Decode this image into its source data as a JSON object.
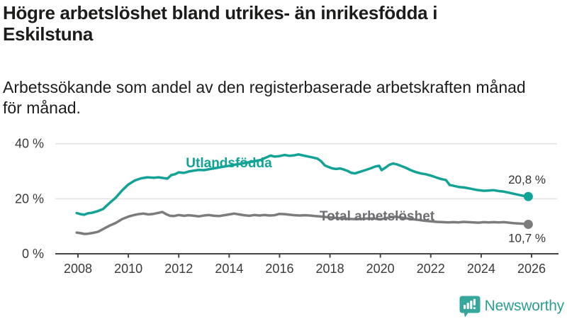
{
  "title": {
    "lines": [
      "Högre arbetslöshet bland utrikes- än inrikesfödda i",
      "Eskilstuna"
    ]
  },
  "subtitle": {
    "lines": [
      "Arbetssökande som andel av den registerbaserade arbetskraften månad",
      "för månad."
    ]
  },
  "chart_data": {
    "type": "line",
    "title": "Högre arbetslöshet bland utrikes- än inrikesfödda i Eskilstuna",
    "subtitle": "Arbetssökande som andel av den registerbaserade arbetskraften månad för månad.",
    "unit": "%",
    "grid": "horizontal-only",
    "legend_position": "inline-labels",
    "style": {
      "axis_color": "#454545",
      "grid_color": "#e1e1e1",
      "tick_text_color": "#3a3a3a",
      "value_text_color": "#333333"
    },
    "x_axis": {
      "range_years": [
        2007.1,
        2027.0
      ],
      "ticks": [
        {
          "value": 2008,
          "label": "2008"
        },
        {
          "value": 2010,
          "label": "2010"
        },
        {
          "value": 2012,
          "label": "2012"
        },
        {
          "value": 2014,
          "label": "2014"
        },
        {
          "value": 2016,
          "label": "2016"
        },
        {
          "value": 2018,
          "label": "2018"
        },
        {
          "value": 2020,
          "label": "2020"
        },
        {
          "value": 2022,
          "label": "2022"
        },
        {
          "value": 2024,
          "label": "2024"
        },
        {
          "value": 2026,
          "label": "2026"
        }
      ]
    },
    "y_axis": {
      "range": [
        0,
        41.5
      ],
      "ticks": [
        {
          "value": 0,
          "label": "0 %"
        },
        {
          "value": 20,
          "label": "20 %"
        },
        {
          "value": 40,
          "label": "40 %"
        }
      ],
      "gridline_values": [
        20,
        40
      ]
    },
    "series": [
      {
        "id": "utlandsfodda",
        "name": "Utlandsfödda",
        "color": "#12A296",
        "label_color": "#12A296",
        "end_label": "20,8 %",
        "end_value": 20.8,
        "points": [
          [
            2007.95,
            14.8
          ],
          [
            2008.1,
            14.4
          ],
          [
            2008.25,
            14.2
          ],
          [
            2008.4,
            14.7
          ],
          [
            2008.55,
            14.9
          ],
          [
            2008.75,
            15.4
          ],
          [
            2009.0,
            16.3
          ],
          [
            2009.25,
            18.4
          ],
          [
            2009.5,
            20.4
          ],
          [
            2009.75,
            23.0
          ],
          [
            2010.0,
            25.2
          ],
          [
            2010.25,
            26.6
          ],
          [
            2010.5,
            27.4
          ],
          [
            2010.75,
            27.8
          ],
          [
            2011.0,
            27.6
          ],
          [
            2011.2,
            27.8
          ],
          [
            2011.4,
            27.5
          ],
          [
            2011.55,
            27.3
          ],
          [
            2011.7,
            28.6
          ],
          [
            2011.85,
            28.9
          ],
          [
            2012.0,
            29.6
          ],
          [
            2012.2,
            29.4
          ],
          [
            2012.4,
            29.9
          ],
          [
            2012.6,
            30.2
          ],
          [
            2012.8,
            30.5
          ],
          [
            2013.0,
            30.4
          ],
          [
            2013.25,
            30.8
          ],
          [
            2013.5,
            31.2
          ],
          [
            2013.75,
            31.6
          ],
          [
            2014.0,
            32.0
          ],
          [
            2014.25,
            32.4
          ],
          [
            2014.5,
            32.8
          ],
          [
            2014.75,
            33.2
          ],
          [
            2015.0,
            33.6
          ],
          [
            2015.25,
            34.1
          ],
          [
            2015.5,
            35.1
          ],
          [
            2015.65,
            35.7
          ],
          [
            2015.8,
            35.3
          ],
          [
            2016.0,
            35.5
          ],
          [
            2016.2,
            35.9
          ],
          [
            2016.4,
            35.6
          ],
          [
            2016.6,
            35.8
          ],
          [
            2016.75,
            36.1
          ],
          [
            2016.9,
            35.8
          ],
          [
            2017.1,
            35.4
          ],
          [
            2017.3,
            35.0
          ],
          [
            2017.5,
            34.6
          ],
          [
            2017.65,
            33.6
          ],
          [
            2017.8,
            32.1
          ],
          [
            2017.95,
            31.5
          ],
          [
            2018.1,
            31.0
          ],
          [
            2018.25,
            30.8
          ],
          [
            2018.4,
            31.0
          ],
          [
            2018.55,
            30.6
          ],
          [
            2018.7,
            30.1
          ],
          [
            2018.85,
            29.4
          ],
          [
            2019.0,
            29.2
          ],
          [
            2019.2,
            29.8
          ],
          [
            2019.4,
            30.4
          ],
          [
            2019.6,
            31.0
          ],
          [
            2019.8,
            31.7
          ],
          [
            2019.95,
            32.0
          ],
          [
            2020.05,
            30.4
          ],
          [
            2020.2,
            31.3
          ],
          [
            2020.35,
            32.3
          ],
          [
            2020.5,
            32.8
          ],
          [
            2020.65,
            32.5
          ],
          [
            2020.8,
            32.0
          ],
          [
            2021.0,
            31.3
          ],
          [
            2021.2,
            30.4
          ],
          [
            2021.4,
            29.7
          ],
          [
            2021.6,
            29.2
          ],
          [
            2021.8,
            28.9
          ],
          [
            2022.0,
            28.4
          ],
          [
            2022.2,
            27.8
          ],
          [
            2022.4,
            27.2
          ],
          [
            2022.6,
            26.8
          ],
          [
            2022.75,
            25.0
          ],
          [
            2022.9,
            24.7
          ],
          [
            2023.1,
            24.3
          ],
          [
            2023.3,
            24.1
          ],
          [
            2023.5,
            23.8
          ],
          [
            2023.7,
            23.4
          ],
          [
            2023.9,
            23.1
          ],
          [
            2024.1,
            22.9
          ],
          [
            2024.3,
            23.0
          ],
          [
            2024.5,
            23.1
          ],
          [
            2024.7,
            22.8
          ],
          [
            2024.9,
            22.6
          ],
          [
            2025.1,
            22.2
          ],
          [
            2025.3,
            21.8
          ],
          [
            2025.5,
            21.4
          ],
          [
            2025.65,
            21.1
          ],
          [
            2025.87,
            20.8
          ]
        ]
      },
      {
        "id": "total-arbetsloshet",
        "name": "Total arbetslöshet",
        "color": "#7C7C7C",
        "label_color": "#6E6E72",
        "end_label": "10,7 %",
        "end_value": 10.7,
        "points": [
          [
            2007.95,
            7.7
          ],
          [
            2008.1,
            7.5
          ],
          [
            2008.25,
            7.2
          ],
          [
            2008.4,
            7.3
          ],
          [
            2008.6,
            7.6
          ],
          [
            2008.8,
            8.0
          ],
          [
            2009.0,
            9.0
          ],
          [
            2009.25,
            10.2
          ],
          [
            2009.5,
            11.2
          ],
          [
            2009.75,
            12.6
          ],
          [
            2010.0,
            13.5
          ],
          [
            2010.2,
            14.0
          ],
          [
            2010.4,
            14.4
          ],
          [
            2010.6,
            14.6
          ],
          [
            2010.8,
            14.3
          ],
          [
            2011.0,
            14.5
          ],
          [
            2011.2,
            14.9
          ],
          [
            2011.35,
            15.2
          ],
          [
            2011.5,
            14.4
          ],
          [
            2011.65,
            13.8
          ],
          [
            2011.8,
            13.7
          ],
          [
            2012.0,
            14.1
          ],
          [
            2012.2,
            13.8
          ],
          [
            2012.4,
            14.0
          ],
          [
            2012.6,
            13.8
          ],
          [
            2012.8,
            13.6
          ],
          [
            2013.0,
            13.9
          ],
          [
            2013.2,
            14.1
          ],
          [
            2013.4,
            13.8
          ],
          [
            2013.6,
            13.7
          ],
          [
            2013.8,
            14.0
          ],
          [
            2014.0,
            14.3
          ],
          [
            2014.2,
            14.6
          ],
          [
            2014.4,
            14.3
          ],
          [
            2014.6,
            14.0
          ],
          [
            2014.8,
            13.8
          ],
          [
            2015.0,
            14.1
          ],
          [
            2015.2,
            13.9
          ],
          [
            2015.4,
            14.1
          ],
          [
            2015.6,
            13.9
          ],
          [
            2015.8,
            14.0
          ],
          [
            2016.0,
            14.5
          ],
          [
            2016.2,
            14.4
          ],
          [
            2016.4,
            14.2
          ],
          [
            2016.6,
            14.0
          ],
          [
            2016.8,
            13.9
          ],
          [
            2017.0,
            14.0
          ],
          [
            2017.2,
            13.9
          ],
          [
            2017.4,
            13.7
          ],
          [
            2017.6,
            13.6
          ],
          [
            2017.8,
            13.4
          ],
          [
            2018.0,
            13.2
          ],
          [
            2018.25,
            13.0
          ],
          [
            2018.5,
            12.9
          ],
          [
            2018.75,
            12.7
          ],
          [
            2019.0,
            12.6
          ],
          [
            2019.25,
            12.7
          ],
          [
            2019.5,
            12.8
          ],
          [
            2019.75,
            12.8
          ],
          [
            2020.0,
            12.5
          ],
          [
            2020.2,
            12.9
          ],
          [
            2020.4,
            13.3
          ],
          [
            2020.6,
            13.5
          ],
          [
            2020.8,
            13.2
          ],
          [
            2021.0,
            12.9
          ],
          [
            2021.25,
            12.6
          ],
          [
            2021.5,
            12.3
          ],
          [
            2021.75,
            12.0
          ],
          [
            2022.0,
            11.8
          ],
          [
            2022.25,
            11.6
          ],
          [
            2022.5,
            11.5
          ],
          [
            2022.7,
            11.4
          ],
          [
            2022.9,
            11.5
          ],
          [
            2023.1,
            11.4
          ],
          [
            2023.3,
            11.6
          ],
          [
            2023.5,
            11.5
          ],
          [
            2023.7,
            11.4
          ],
          [
            2023.9,
            11.3
          ],
          [
            2024.1,
            11.5
          ],
          [
            2024.3,
            11.4
          ],
          [
            2024.5,
            11.5
          ],
          [
            2024.7,
            11.4
          ],
          [
            2024.9,
            11.5
          ],
          [
            2025.1,
            11.3
          ],
          [
            2025.3,
            11.1
          ],
          [
            2025.5,
            11.0
          ],
          [
            2025.7,
            10.9
          ],
          [
            2025.87,
            10.7
          ]
        ]
      }
    ]
  },
  "footer": {
    "brand": "Newsworthy",
    "brand_color": "#2D9D93",
    "icon_color": "#35A79C",
    "icon": "newsworthy-barchart-bubble-icon"
  }
}
